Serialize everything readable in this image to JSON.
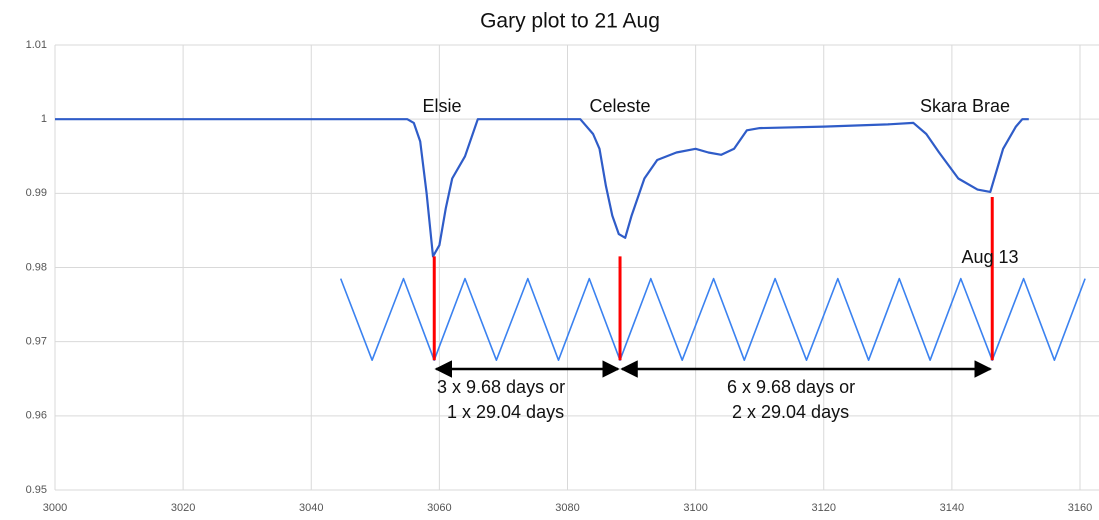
{
  "chart_data": {
    "type": "line",
    "title": "Gary plot to 21 Aug",
    "xlim": [
      3000,
      3160
    ],
    "xticks": [
      3000,
      3020,
      3040,
      3060,
      3080,
      3100,
      3120,
      3140,
      3160
    ],
    "ylim": [
      0.95,
      1.01
    ],
    "yticks": [
      0.95,
      0.96,
      0.97,
      0.98,
      0.99,
      1,
      1.01
    ],
    "grid": true,
    "series": [
      {
        "color": "#2f5cc8",
        "x": [
          3000,
          3055,
          3056,
          3057,
          3058,
          3059,
          3060,
          3061,
          3062,
          3064,
          3066,
          3082,
          3084,
          3085,
          3086,
          3087,
          3088,
          3089,
          3090,
          3092,
          3094,
          3097,
          3100,
          3102,
          3104,
          3106,
          3108,
          3110,
          3120,
          3130,
          3134,
          3136,
          3138,
          3141,
          3144,
          3146,
          3148,
          3150,
          3151,
          3152
        ],
        "values": [
          1,
          1,
          0.9995,
          0.997,
          0.99,
          0.9815,
          0.983,
          0.988,
          0.992,
          0.995,
          1,
          1,
          0.998,
          0.996,
          0.991,
          0.987,
          0.9845,
          0.984,
          0.987,
          0.992,
          0.9945,
          0.9955,
          0.996,
          0.9955,
          0.9952,
          0.996,
          0.9985,
          0.9988,
          0.999,
          0.9993,
          0.9995,
          0.998,
          0.9955,
          0.992,
          0.9905,
          0.9902,
          0.996,
          0.999,
          1,
          1
        ]
      },
      {
        "color": "#3b82f0",
        "x": [
          3044.6,
          3049.5,
          3054.4,
          3059.2,
          3064.0,
          3068.9,
          3073.8,
          3078.6,
          3083.4,
          3088.2,
          3093.0,
          3097.9,
          3102.8,
          3107.6,
          3112.4,
          3117.3,
          3122.2,
          3127.0,
          3131.8,
          3136.6,
          3141.4,
          3146.3,
          3151.2,
          3156.0,
          3160.8
        ],
        "values": [
          0.9785,
          0.9675,
          0.9785,
          0.9675,
          0.9785,
          0.9675,
          0.9785,
          0.9675,
          0.9785,
          0.9675,
          0.9785,
          0.9675,
          0.9785,
          0.9675,
          0.9785,
          0.9675,
          0.9785,
          0.9675,
          0.9785,
          0.9675,
          0.9785,
          0.9675,
          0.9785,
          0.9675,
          0.9785
        ]
      }
    ],
    "markers": {
      "color": "#ff0000",
      "x": [
        3059.2,
        3088.2,
        3146.3
      ],
      "y_top": [
        0.9815,
        0.9815,
        0.9895
      ],
      "y_base": 0.9675
    },
    "annotations": [
      "Elsie",
      "Celeste",
      "Skara Brae",
      "Aug 13"
    ],
    "spans": [
      [
        "3 x 9.68 days or",
        "1 x 29.04 days"
      ],
      [
        "6 x 9.68 days or",
        "2 x 29.04 days"
      ]
    ]
  }
}
